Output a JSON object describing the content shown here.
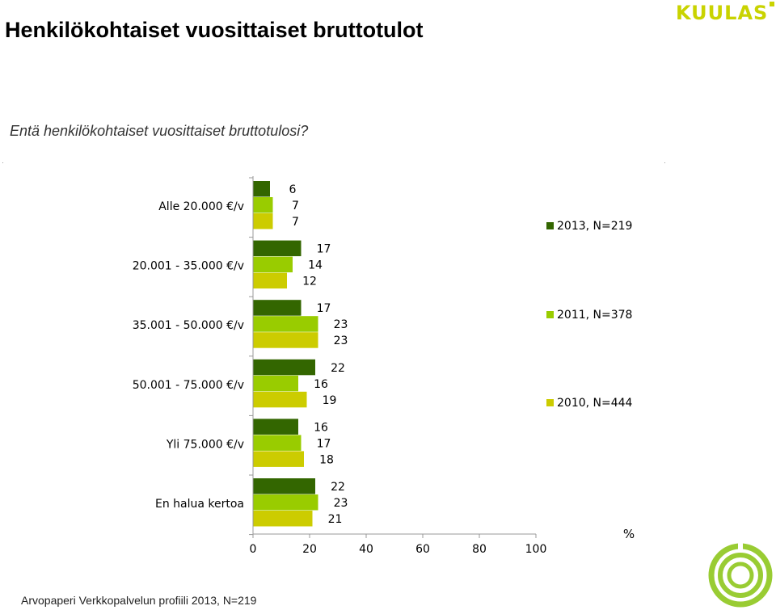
{
  "title": "Henkilökohtaiset vuosittaiset bruttotulot",
  "question": "Entä henkilökohtaiset vuosittaiset bruttotulosi?",
  "logo_text": "KUULAS",
  "footer": "Arvopaperi Verkkopalvelun profiili 2013, N=219",
  "colors": {
    "series_2013": "#336600",
    "series_2011": "#99cc00",
    "series_2010": "#cccc00",
    "logo": "#99cc33"
  },
  "chart_data": {
    "type": "bar",
    "orientation": "horizontal",
    "categories": [
      "Alle 20.000 €/v",
      "20.001 - 35.000 €/v",
      "35.001 - 50.000 €/v",
      "50.001 - 75.000 €/v",
      "Yli 75.000 €/v",
      "En halua kertoa"
    ],
    "series": [
      {
        "name": "2013, N=219",
        "values": [
          6,
          17,
          17,
          22,
          16,
          22
        ]
      },
      {
        "name": "2011, N=378",
        "values": [
          7,
          14,
          23,
          16,
          17,
          23
        ]
      },
      {
        "name": "2010, N=444",
        "values": [
          7,
          12,
          23,
          19,
          18,
          21
        ]
      }
    ],
    "xlim": [
      0,
      100
    ],
    "xticks": [
      0,
      20,
      40,
      60,
      80,
      100
    ],
    "xlabel": "%",
    "grid": false,
    "legend_position": "right"
  }
}
